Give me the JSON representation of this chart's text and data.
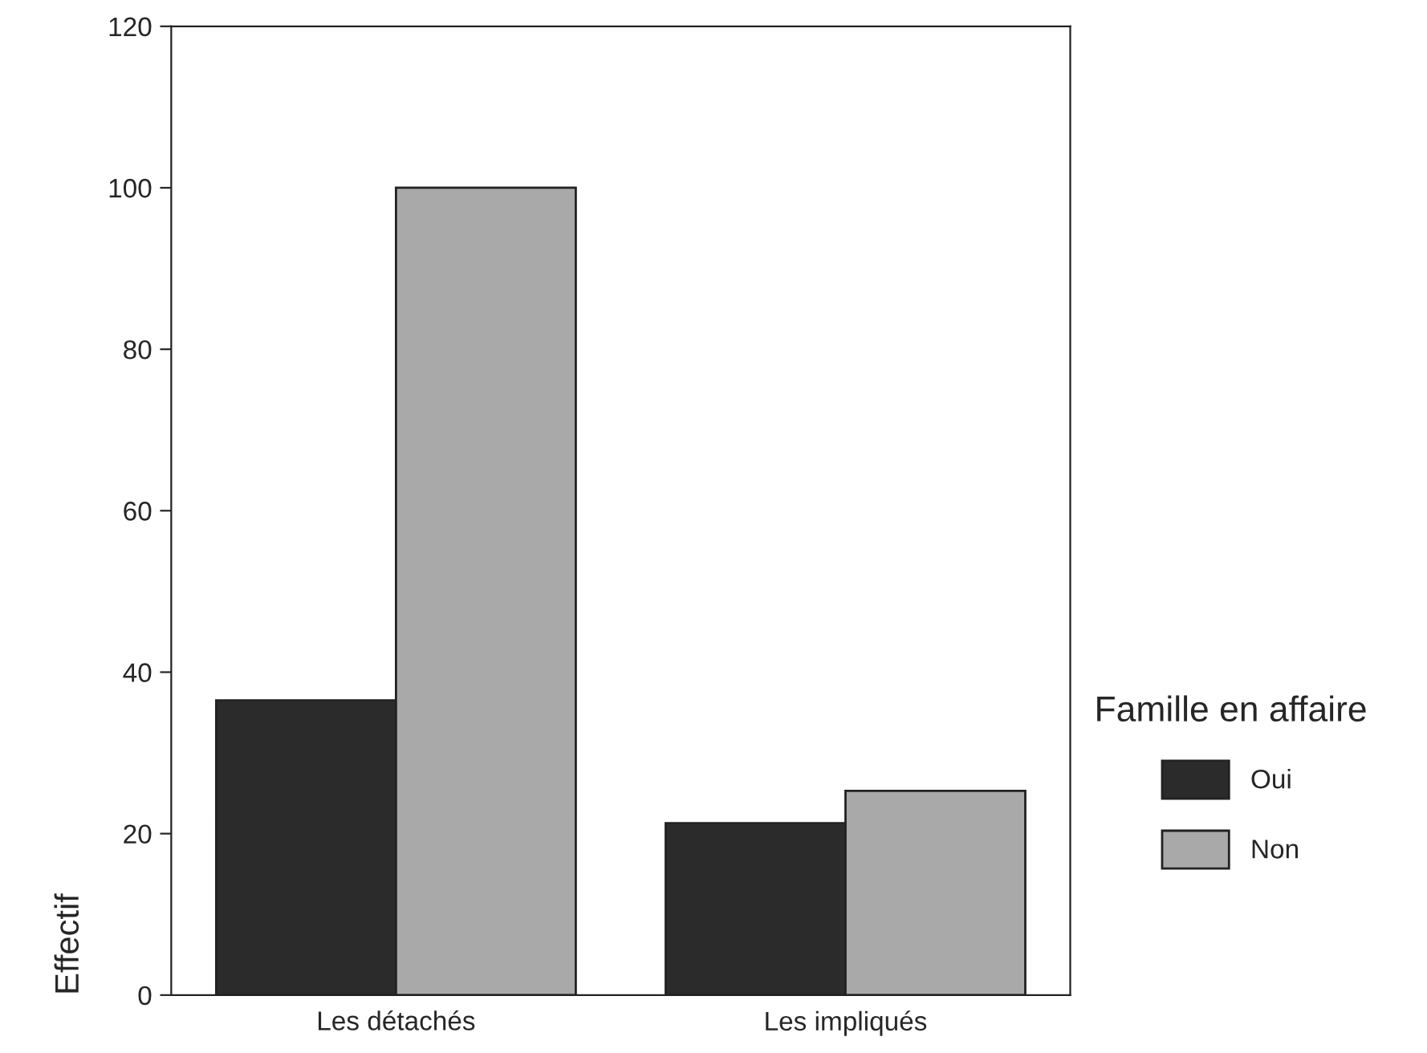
{
  "chart_data": {
    "type": "bar",
    "ylabel": "Effectif",
    "legend_title": "Famille en affaire",
    "categories": [
      "Les détachés",
      "Les impliqués"
    ],
    "series": [
      {
        "name": "Oui",
        "color": "#2b2b2b",
        "values": [
          36.5,
          21.3
        ]
      },
      {
        "name": "Non",
        "color": "#a9a9a9",
        "values": [
          100,
          25.3
        ]
      }
    ],
    "ylim": [
      0,
      120
    ],
    "yticks": [
      0,
      20,
      40,
      60,
      80,
      100,
      120
    ],
    "grid": false,
    "legend": "right"
  }
}
